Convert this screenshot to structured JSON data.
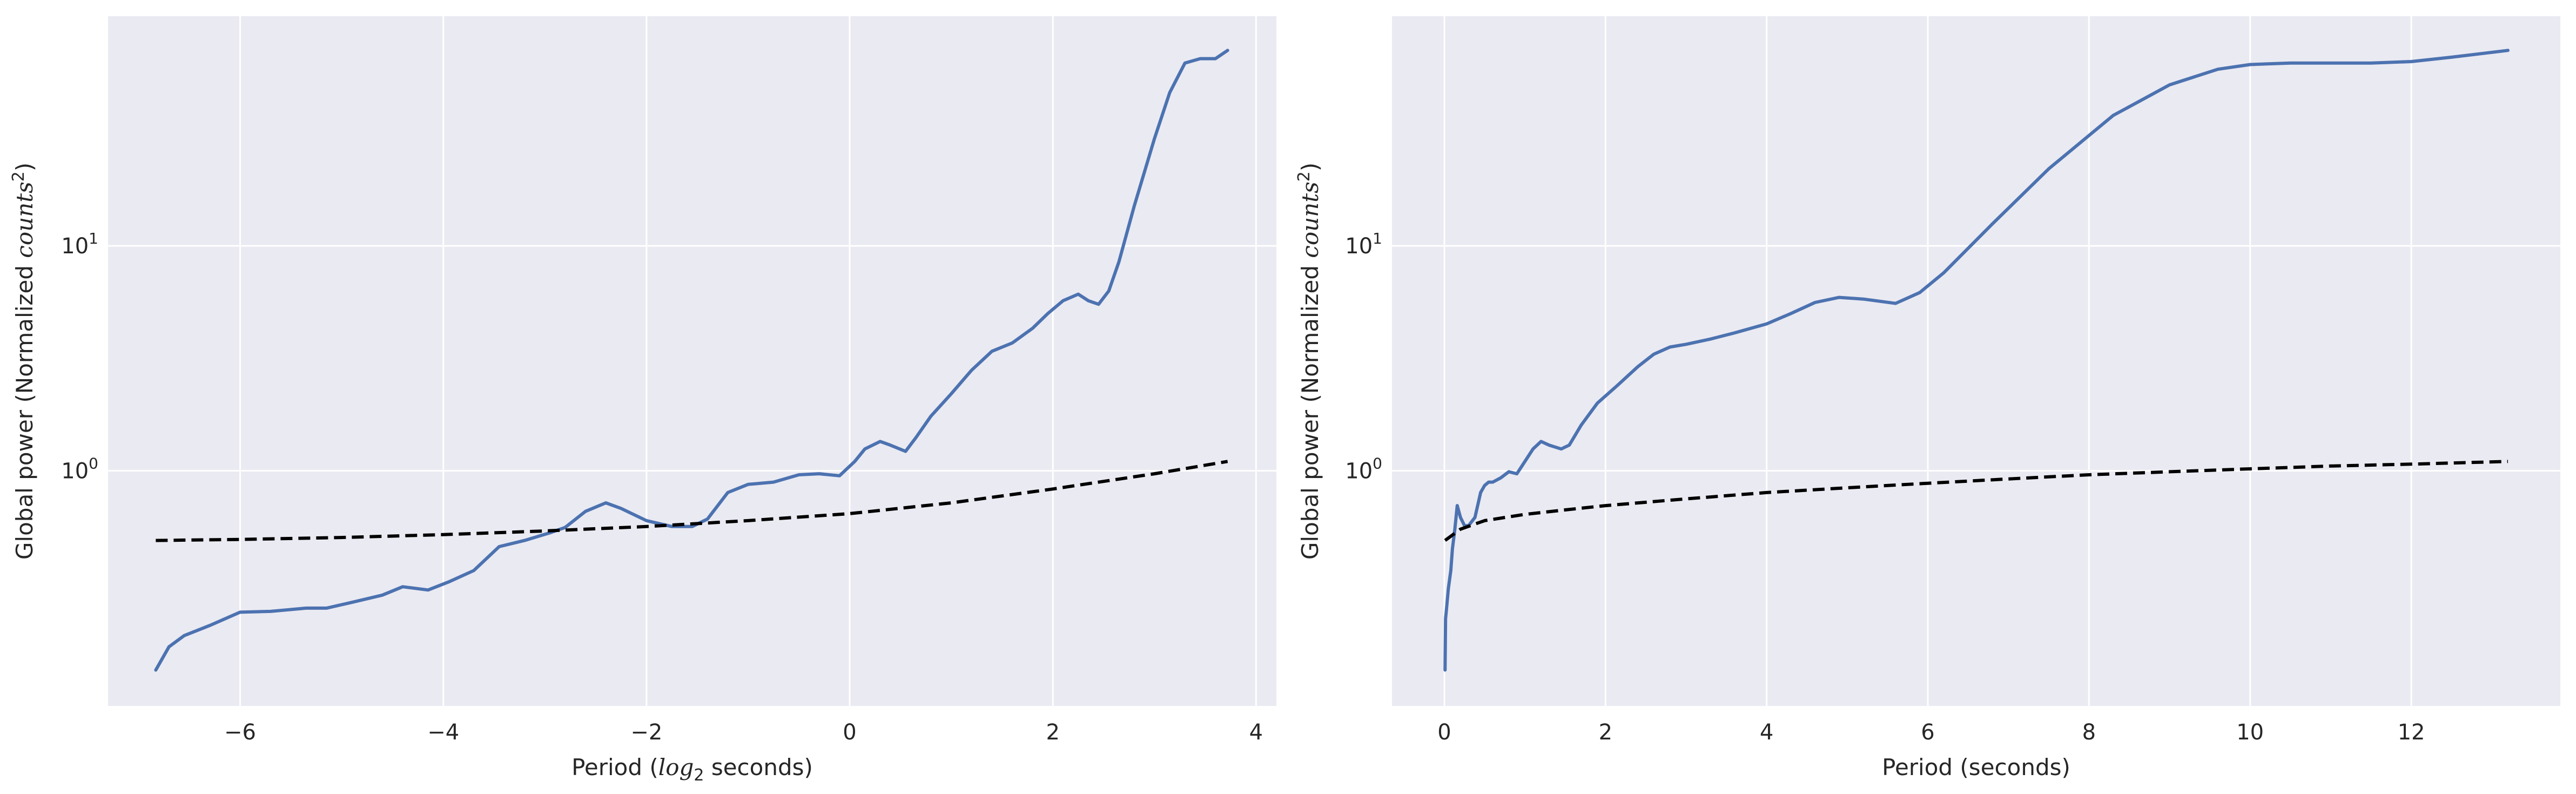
{
  "figure": {
    "background": "#ffffff",
    "plot_background": "#eaeaf2",
    "grid_color": "#ffffff"
  },
  "chart_data": [
    {
      "type": "line",
      "title": "",
      "xlabel": {
        "prefix": "Period (",
        "math": "log",
        "sub": "2",
        "suffix": " seconds)"
      },
      "ylabel": {
        "prefix": "Global power (Normalized ",
        "math": "counts",
        "sup": "2",
        "suffix": ")"
      },
      "xlim": [
        -7.3,
        4.2
      ],
      "ylim": [
        0.09,
        105
      ],
      "yscale": "log",
      "grid": true,
      "legend": "none",
      "xticks": [
        {
          "value": -6,
          "label": "−6"
        },
        {
          "value": -4,
          "label": "−4"
        },
        {
          "value": -2,
          "label": "−2"
        },
        {
          "value": 0,
          "label": "0"
        },
        {
          "value": 2,
          "label": "2"
        },
        {
          "value": 4,
          "label": "4"
        }
      ],
      "yticks": [
        {
          "value": 1,
          "base": "10",
          "exp": "0"
        },
        {
          "value": 10,
          "base": "10",
          "exp": "1"
        }
      ],
      "series": [
        {
          "color": "#4c72b0",
          "dash": "solid",
          "x": [
            -6.83,
            -6.7,
            -6.55,
            -6.3,
            -6.0,
            -5.7,
            -5.35,
            -5.15,
            -4.9,
            -4.6,
            -4.4,
            -4.15,
            -3.95,
            -3.7,
            -3.45,
            -3.2,
            -2.95,
            -2.8,
            -2.6,
            -2.4,
            -2.25,
            -2.0,
            -1.75,
            -1.55,
            -1.4,
            -1.2,
            -1.0,
            -0.75,
            -0.5,
            -0.3,
            -0.1,
            0.05,
            0.15,
            0.3,
            0.4,
            0.55,
            0.65,
            0.8,
            1.0,
            1.2,
            1.4,
            1.6,
            1.8,
            1.95,
            2.1,
            2.25,
            2.35,
            2.45,
            2.55,
            2.65,
            2.8,
            3.0,
            3.15,
            3.3,
            3.45,
            3.6,
            3.72
          ],
          "y": [
            0.13,
            0.165,
            0.185,
            0.205,
            0.235,
            0.237,
            0.245,
            0.245,
            0.26,
            0.28,
            0.305,
            0.295,
            0.32,
            0.36,
            0.46,
            0.49,
            0.53,
            0.56,
            0.66,
            0.72,
            0.68,
            0.6,
            0.565,
            0.565,
            0.61,
            0.8,
            0.87,
            0.89,
            0.96,
            0.97,
            0.95,
            1.1,
            1.25,
            1.35,
            1.3,
            1.22,
            1.4,
            1.75,
            2.2,
            2.8,
            3.4,
            3.7,
            4.3,
            5.0,
            5.7,
            6.1,
            5.7,
            5.5,
            6.3,
            8.5,
            15.0,
            30.0,
            48.0,
            65.0,
            68.0,
            68.0,
            74.0
          ]
        },
        {
          "color": "#000000",
          "dash": "dashed",
          "x": [
            -6.83,
            -6.0,
            -5.0,
            -4.0,
            -3.0,
            -2.0,
            -1.0,
            0.0,
            1.0,
            2.0,
            3.0,
            3.72
          ],
          "y": [
            0.49,
            0.495,
            0.505,
            0.52,
            0.54,
            0.565,
            0.6,
            0.645,
            0.72,
            0.83,
            0.97,
            1.1
          ]
        }
      ]
    },
    {
      "type": "line",
      "title": "",
      "xlabel": {
        "prefix": "Period (seconds)",
        "math": "",
        "sub": "",
        "suffix": ""
      },
      "ylabel": {
        "prefix": "Global power (Normalized ",
        "math": "counts",
        "sup": "2",
        "suffix": ")"
      },
      "xlim": [
        -0.65,
        13.85
      ],
      "ylim": [
        0.09,
        105
      ],
      "yscale": "log",
      "grid": true,
      "legend": "none",
      "xticks": [
        {
          "value": 0,
          "label": "0"
        },
        {
          "value": 2,
          "label": "2"
        },
        {
          "value": 4,
          "label": "4"
        },
        {
          "value": 6,
          "label": "6"
        },
        {
          "value": 8,
          "label": "8"
        },
        {
          "value": 10,
          "label": "10"
        },
        {
          "value": 12,
          "label": "12"
        }
      ],
      "yticks": [
        {
          "value": 1,
          "base": "10",
          "exp": "0"
        },
        {
          "value": 10,
          "base": "10",
          "exp": "1"
        }
      ],
      "series": [
        {
          "color": "#4c72b0",
          "dash": "solid",
          "x": [
            0.009,
            0.015,
            0.03,
            0.05,
            0.08,
            0.1,
            0.13,
            0.16,
            0.2,
            0.25,
            0.3,
            0.38,
            0.45,
            0.5,
            0.55,
            0.6,
            0.7,
            0.8,
            0.9,
            1.0,
            1.1,
            1.2,
            1.3,
            1.45,
            1.55,
            1.7,
            1.9,
            2.15,
            2.4,
            2.6,
            2.8,
            3.0,
            3.3,
            3.6,
            4.0,
            4.3,
            4.6,
            4.9,
            5.2,
            5.6,
            5.9,
            6.2,
            6.8,
            7.5,
            8.3,
            9.0,
            9.6,
            10.0,
            10.5,
            11.0,
            11.5,
            12.0,
            12.5,
            13.2
          ],
          "y": [
            0.13,
            0.22,
            0.25,
            0.3,
            0.36,
            0.45,
            0.55,
            0.7,
            0.62,
            0.57,
            0.57,
            0.62,
            0.8,
            0.86,
            0.89,
            0.89,
            0.93,
            0.99,
            0.97,
            1.1,
            1.25,
            1.35,
            1.3,
            1.25,
            1.3,
            1.6,
            2.0,
            2.4,
            2.9,
            3.3,
            3.55,
            3.65,
            3.85,
            4.1,
            4.5,
            5.0,
            5.6,
            5.9,
            5.8,
            5.55,
            6.2,
            7.6,
            12.5,
            22.0,
            38.0,
            52.0,
            61.0,
            64.0,
            65.0,
            65.0,
            65.0,
            66.0,
            69.0,
            74.0
          ]
        },
        {
          "color": "#000000",
          "dash": "dashed",
          "x": [
            0.009,
            0.2,
            0.5,
            1.0,
            1.5,
            2.0,
            3.0,
            4.0,
            5.0,
            6.0,
            7.0,
            8.0,
            9.0,
            10.0,
            11.0,
            12.0,
            13.2
          ],
          "y": [
            0.49,
            0.55,
            0.6,
            0.64,
            0.67,
            0.7,
            0.75,
            0.8,
            0.84,
            0.88,
            0.92,
            0.96,
            0.99,
            1.02,
            1.05,
            1.07,
            1.1
          ]
        }
      ]
    }
  ]
}
